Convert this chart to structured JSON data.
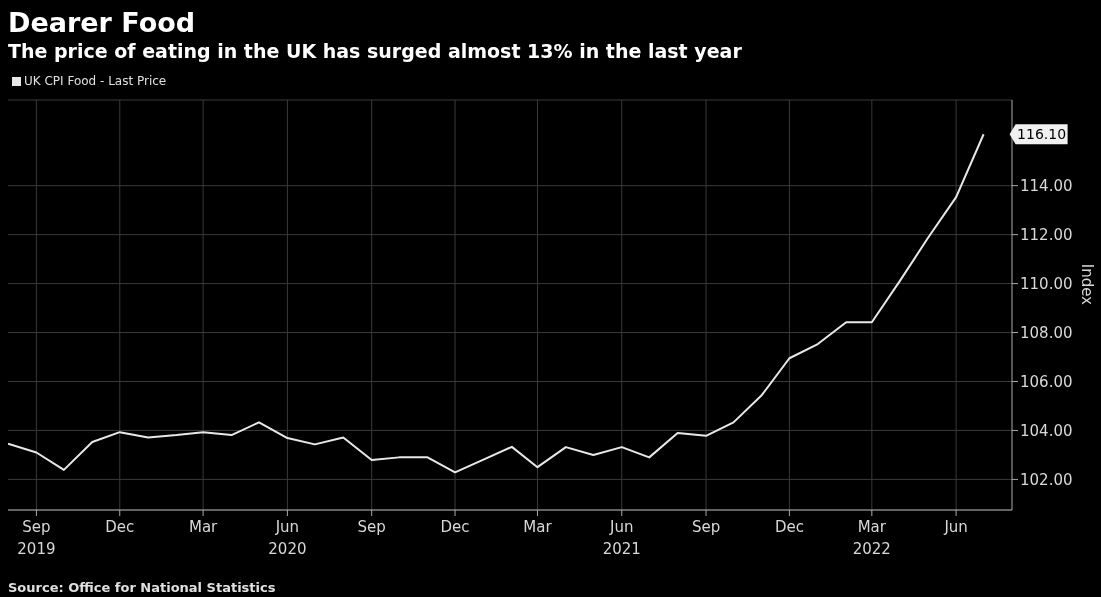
{
  "chart_data": {
    "type": "line",
    "title": "Dearer Food",
    "subtitle": "The price of eating in the UK has surged almost 13% in the last year",
    "ylabel": "Index",
    "x": [
      "2019-08",
      "2019-09",
      "2019-10",
      "2019-11",
      "2019-12",
      "2020-01",
      "2020-02",
      "2020-03",
      "2020-04",
      "2020-05",
      "2020-06",
      "2020-07",
      "2020-08",
      "2020-09",
      "2020-10",
      "2020-11",
      "2020-12",
      "2021-01",
      "2021-02",
      "2021-03",
      "2021-04",
      "2021-05",
      "2021-06",
      "2021-07",
      "2021-08",
      "2021-09",
      "2021-10",
      "2021-11",
      "2021-12",
      "2022-01",
      "2022-02",
      "2022-03",
      "2022-04",
      "2022-05",
      "2022-06",
      "2022-07"
    ],
    "series": [
      {
        "name": "UK CPI Food - Last Price",
        "color": "#e8e8e8",
        "values": [
          103.46,
          103.1,
          102.39,
          103.53,
          103.93,
          103.71,
          103.81,
          103.93,
          103.81,
          104.33,
          103.69,
          103.43,
          103.71,
          102.79,
          102.9,
          102.9,
          102.29,
          102.81,
          103.33,
          102.5,
          103.32,
          103.0,
          103.32,
          102.9,
          103.9,
          103.78,
          104.33,
          105.45,
          106.95,
          107.53,
          108.42,
          108.42,
          110.13,
          111.85,
          113.53,
          116.1
        ]
      }
    ],
    "xlim": [
      "2019-08",
      "2022-08"
    ],
    "xticks": [
      {
        "value": "2019-09",
        "label": "Sep\n2019"
      },
      {
        "value": "2019-12",
        "label": "Dec"
      },
      {
        "value": "2020-03",
        "label": "Mar"
      },
      {
        "value": "2020-06",
        "label": "Jun\n2020"
      },
      {
        "value": "2020-09",
        "label": "Sep"
      },
      {
        "value": "2020-12",
        "label": "Dec"
      },
      {
        "value": "2021-03",
        "label": "Mar"
      },
      {
        "value": "2021-06",
        "label": "Jun\n2021"
      },
      {
        "value": "2021-09",
        "label": "Sep"
      },
      {
        "value": "2021-12",
        "label": "Dec"
      },
      {
        "value": "2022-03",
        "label": "Mar\n2022"
      },
      {
        "value": "2022-06",
        "label": "Jun"
      }
    ],
    "ylim": [
      100.75,
      117.5
    ],
    "yticks": [
      {
        "value": 102,
        "label": "102.00"
      },
      {
        "value": 104,
        "label": "104.00"
      },
      {
        "value": 106,
        "label": "106.00"
      },
      {
        "value": 108,
        "label": "108.00"
      },
      {
        "value": 110,
        "label": "110.00"
      },
      {
        "value": 112,
        "label": "112.00"
      },
      {
        "value": 114,
        "label": "114.00"
      }
    ],
    "annotations": [
      {
        "text": "116.10",
        "x": "2022-07",
        "y": 116.1
      },
      "Source: Office for National Statistics"
    ],
    "grid": true,
    "legend": "top left",
    "marker": "none",
    "line_style": "solid"
  }
}
